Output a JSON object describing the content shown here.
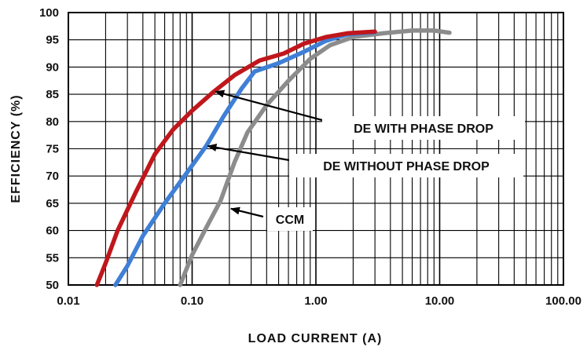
{
  "chart_data": {
    "type": "line",
    "xscale": "log",
    "xlim": [
      0.01,
      100
    ],
    "ylim": [
      50,
      100
    ],
    "grid": true,
    "xlabel": "LOAD CURRENT (A)",
    "ylabel": "EFFICIENCY (%)",
    "x_ticks": [
      "0.01",
      "0.10",
      "1.00",
      "10.00",
      "100.00"
    ],
    "y_ticks": [
      "50",
      "55",
      "60",
      "65",
      "70",
      "75",
      "80",
      "85",
      "90",
      "95",
      "100"
    ],
    "series": [
      {
        "label": "DE WITH PHASE DROP",
        "color": "#c0171c",
        "points": [
          [
            0.017,
            50
          ],
          [
            0.02,
            54
          ],
          [
            0.025,
            60
          ],
          [
            0.035,
            67
          ],
          [
            0.05,
            74
          ],
          [
            0.07,
            78.5
          ],
          [
            0.1,
            82
          ],
          [
            0.15,
            85.5
          ],
          [
            0.22,
            88.5
          ],
          [
            0.35,
            91.2
          ],
          [
            0.55,
            92.5
          ],
          [
            0.8,
            94.3
          ],
          [
            1.2,
            95.5
          ],
          [
            1.8,
            96.2
          ],
          [
            3.0,
            96.5
          ]
        ]
      },
      {
        "label": "DE WITHOUT PHASE DROP",
        "color": "#3f7fd6",
        "points": [
          [
            0.024,
            50
          ],
          [
            0.03,
            53.5
          ],
          [
            0.04,
            59
          ],
          [
            0.06,
            65
          ],
          [
            0.09,
            70.5
          ],
          [
            0.13,
            75.5
          ],
          [
            0.18,
            81
          ],
          [
            0.25,
            86
          ],
          [
            0.32,
            89.2
          ],
          [
            0.5,
            90.7
          ],
          [
            0.8,
            92.8
          ],
          [
            1.2,
            94.8
          ],
          [
            1.8,
            96
          ],
          [
            3.0,
            96.4
          ]
        ]
      },
      {
        "label": "CCM",
        "color": "#8c8c8c",
        "points": [
          [
            0.08,
            50
          ],
          [
            0.1,
            55.5
          ],
          [
            0.13,
            60.5
          ],
          [
            0.17,
            65.5
          ],
          [
            0.22,
            72.5
          ],
          [
            0.28,
            78
          ],
          [
            0.4,
            83
          ],
          [
            0.6,
            87.5
          ],
          [
            0.9,
            91.5
          ],
          [
            1.3,
            94
          ],
          [
            2.0,
            95.5
          ],
          [
            3.5,
            96.2
          ],
          [
            6.0,
            96.7
          ],
          [
            9.0,
            96.7
          ],
          [
            12.0,
            96.3
          ]
        ]
      }
    ],
    "annotations": [
      {
        "text": "DE WITH PHASE DROP",
        "series": "DE WITH PHASE DROP",
        "arrow_to": [
          0.15,
          85.5
        ]
      },
      {
        "text": "DE WITHOUT PHASE DROP",
        "series": "DE WITHOUT PHASE DROP",
        "arrow_to": [
          0.13,
          75.5
        ]
      },
      {
        "text": "CCM",
        "series": "CCM",
        "arrow_to": [
          0.2,
          64
        ]
      }
    ]
  }
}
